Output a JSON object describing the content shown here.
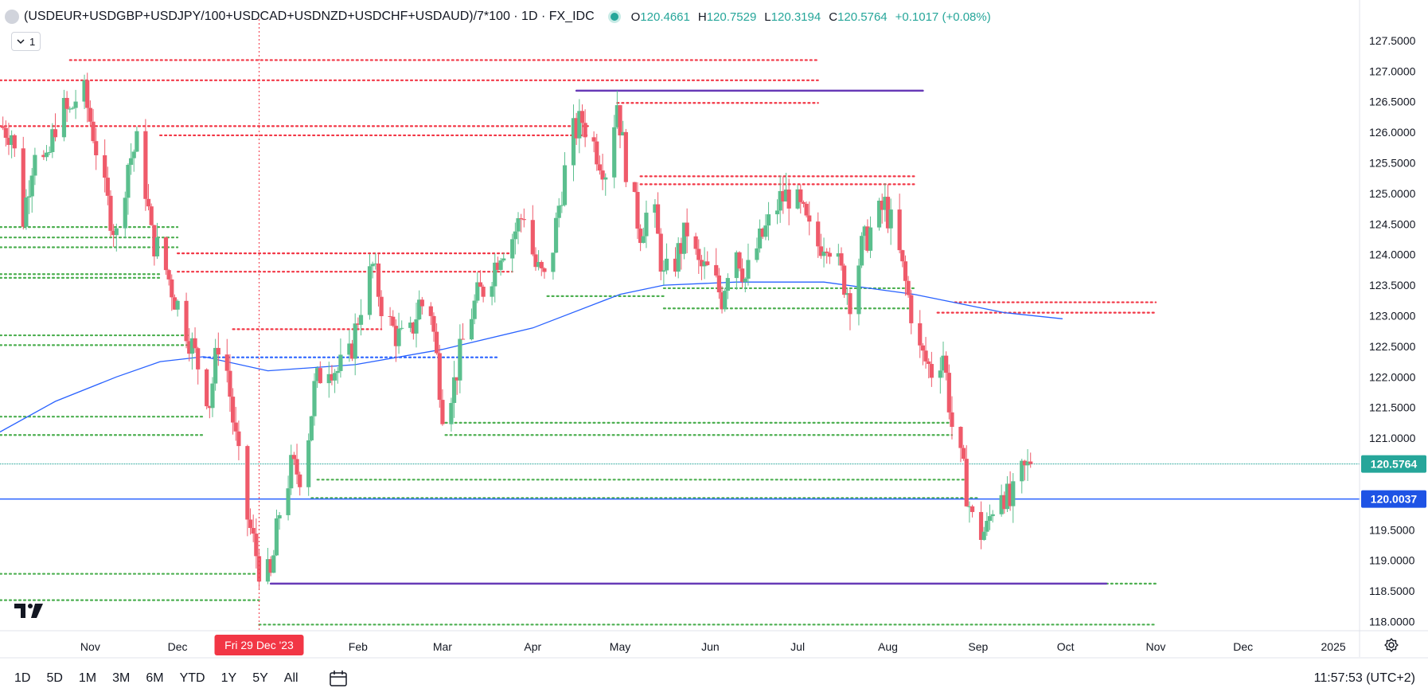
{
  "header": {
    "symbol_title": "(USDEUR+USDGBP+USDJPY/100+USDCAD+USDNZD+USDCHF+USDAUD)/7*100 · 1D · FX_IDC",
    "ohlc": {
      "o_label": "O",
      "o": "120.4661",
      "h_label": "H",
      "h": "120.7529",
      "l_label": "L",
      "l": "120.3194",
      "c_label": "C",
      "c": "120.5764",
      "change": "+0.1017 (+0.08%)"
    },
    "indicator_count": "1"
  },
  "time_axis": {
    "labels": [
      "Nov",
      "Dec",
      "Feb",
      "Mar",
      "Apr",
      "May",
      "Jun",
      "Jul",
      "Aug",
      "Sep",
      "Oct",
      "Nov",
      "Dec",
      "2025"
    ],
    "crosshair_label": "Fri 29 Dec '23"
  },
  "price_axis": {
    "labels": [
      "127.5000",
      "127.0000",
      "126.5000",
      "126.0000",
      "125.5000",
      "125.0000",
      "124.5000",
      "124.0000",
      "123.5000",
      "123.0000",
      "122.5000",
      "122.0000",
      "121.5000",
      "121.0000",
      "120.5000",
      "120.0000",
      "119.5000",
      "119.0000",
      "118.5000",
      "118.0000"
    ],
    "last_price_badge": "120.5764",
    "line_price_badge": "120.0037"
  },
  "bottom_bar": {
    "ranges": [
      "1D",
      "5D",
      "1M",
      "3M",
      "6M",
      "YTD",
      "1Y",
      "5Y",
      "All"
    ],
    "clock": "11:57:53 (UTC+2)"
  },
  "colors": {
    "up": "#26a69a",
    "down": "#ef5350",
    "candle_up": "#5bbf8e",
    "candle_down": "#ef5a6a",
    "ma": "#2962ff",
    "purple": "#673ab7",
    "last_badge": "#26a69a",
    "line_badge": "#1e53e5",
    "crosshair_badge": "#f23645"
  },
  "chart_data": {
    "type": "candlestick",
    "title": "(USDEUR+USDGBP+USDJPY/100+USDCAD+USDNZD+USDCHF+USDAUD)/7*100 · 1D · FX_IDC",
    "ylim": [
      117.85,
      127.85
    ],
    "y_ticks": [
      118.0,
      118.5,
      119.0,
      119.5,
      120.0,
      120.5,
      121.0,
      121.5,
      122.0,
      122.5,
      123.0,
      123.5,
      124.0,
      124.5,
      125.0,
      125.5,
      126.0,
      126.5,
      127.0,
      127.5
    ],
    "x_range": [
      "2023-10-01",
      "2025-01-10"
    ],
    "x_ticks": [
      {
        "date": "2023-11-01",
        "label": "Nov"
      },
      {
        "date": "2023-12-01",
        "label": "Dec"
      },
      {
        "date": "2024-02-01",
        "label": "Feb"
      },
      {
        "date": "2024-03-01",
        "label": "Mar"
      },
      {
        "date": "2024-04-01",
        "label": "Apr"
      },
      {
        "date": "2024-05-01",
        "label": "May"
      },
      {
        "date": "2024-06-01",
        "label": "Jun"
      },
      {
        "date": "2024-07-01",
        "label": "Jul"
      },
      {
        "date": "2024-08-01",
        "label": "Aug"
      },
      {
        "date": "2024-09-01",
        "label": "Sep"
      },
      {
        "date": "2024-10-01",
        "label": "Oct"
      },
      {
        "date": "2024-11-01",
        "label": "Nov"
      },
      {
        "date": "2024-12-01",
        "label": "Dec"
      },
      {
        "date": "2025-01-01",
        "label": "2025"
      }
    ],
    "crosshair_date": "2023-12-29",
    "close_path": [
      [
        "2023-10-01",
        126.1
      ],
      [
        "2023-10-05",
        126.0
      ],
      [
        "2023-10-09",
        124.6
      ],
      [
        "2023-10-13",
        125.8
      ],
      [
        "2023-10-17",
        125.4
      ],
      [
        "2023-10-21",
        126.4
      ],
      [
        "2023-10-25",
        126.3
      ],
      [
        "2023-10-29",
        126.8
      ],
      [
        "2023-11-02",
        126.0
      ],
      [
        "2023-11-06",
        125.0
      ],
      [
        "2023-11-10",
        124.3
      ],
      [
        "2023-11-14",
        125.5
      ],
      [
        "2023-11-18",
        125.9
      ],
      [
        "2023-11-22",
        124.3
      ],
      [
        "2023-11-26",
        123.9
      ],
      [
        "2023-11-30",
        123.3
      ],
      [
        "2023-12-04",
        122.8
      ],
      [
        "2023-12-08",
        122.2
      ],
      [
        "2023-12-12",
        121.6
      ],
      [
        "2023-12-16",
        122.9
      ],
      [
        "2023-12-20",
        121.3
      ],
      [
        "2023-12-24",
        119.9
      ],
      [
        "2023-12-29",
        118.9
      ],
      [
        "2024-01-02",
        118.7
      ],
      [
        "2024-01-05",
        119.8
      ],
      [
        "2024-01-09",
        120.5
      ],
      [
        "2024-01-13",
        120.4
      ],
      [
        "2024-01-17",
        121.8
      ],
      [
        "2024-01-21",
        122.3
      ],
      [
        "2024-01-25",
        122.1
      ],
      [
        "2024-01-29",
        122.3
      ],
      [
        "2024-02-02",
        123.2
      ],
      [
        "2024-02-06",
        123.8
      ],
      [
        "2024-02-10",
        123.0
      ],
      [
        "2024-02-14",
        122.7
      ],
      [
        "2024-02-18",
        122.5
      ],
      [
        "2024-02-22",
        123.2
      ],
      [
        "2024-02-26",
        123.1
      ],
      [
        "2024-03-01",
        121.5
      ],
      [
        "2024-03-05",
        121.9
      ],
      [
        "2024-03-09",
        122.8
      ],
      [
        "2024-03-13",
        123.3
      ],
      [
        "2024-03-17",
        123.6
      ],
      [
        "2024-03-21",
        124.1
      ],
      [
        "2024-03-25",
        124.3
      ],
      [
        "2024-03-29",
        124.7
      ],
      [
        "2024-04-02",
        123.8
      ],
      [
        "2024-04-06",
        123.5
      ],
      [
        "2024-04-10",
        124.8
      ],
      [
        "2024-04-14",
        125.9
      ],
      [
        "2024-04-18",
        126.2
      ],
      [
        "2024-04-22",
        125.8
      ],
      [
        "2024-04-26",
        125.4
      ],
      [
        "2024-04-30",
        126.5
      ],
      [
        "2024-05-04",
        125.1
      ],
      [
        "2024-05-08",
        124.4
      ],
      [
        "2024-05-12",
        124.9
      ],
      [
        "2024-05-16",
        123.6
      ],
      [
        "2024-05-20",
        123.9
      ],
      [
        "2024-05-24",
        124.4
      ],
      [
        "2024-05-28",
        123.8
      ],
      [
        "2024-06-01",
        123.7
      ],
      [
        "2024-06-05",
        123.3
      ],
      [
        "2024-06-09",
        124.3
      ],
      [
        "2024-06-13",
        123.6
      ],
      [
        "2024-06-17",
        124.1
      ],
      [
        "2024-06-21",
        124.5
      ],
      [
        "2024-06-25",
        124.9
      ],
      [
        "2024-06-29",
        125.0
      ],
      [
        "2024-07-03",
        124.6
      ],
      [
        "2024-07-07",
        124.1
      ],
      [
        "2024-07-11",
        124.3
      ],
      [
        "2024-07-15",
        123.8
      ],
      [
        "2024-07-19",
        123.3
      ],
      [
        "2024-07-23",
        124.1
      ],
      [
        "2024-07-27",
        124.5
      ],
      [
        "2024-07-31",
        124.8
      ],
      [
        "2024-08-04",
        124.2
      ],
      [
        "2024-08-08",
        123.3
      ],
      [
        "2024-08-12",
        122.4
      ],
      [
        "2024-08-16",
        122.1
      ],
      [
        "2024-08-20",
        122.4
      ],
      [
        "2024-08-23",
        121.2
      ],
      [
        "2024-08-27",
        120.4
      ],
      [
        "2024-08-31",
        119.4
      ],
      [
        "2024-09-04",
        119.5
      ],
      [
        "2024-09-08",
        120.3
      ],
      [
        "2024-09-12",
        119.9
      ],
      [
        "2024-09-16",
        120.4
      ],
      [
        "2024-09-19",
        120.5764
      ]
    ],
    "ma_line": [
      [
        "2023-10-01",
        121.1
      ],
      [
        "2023-10-20",
        121.6
      ],
      [
        "2023-11-10",
        122.0
      ],
      [
        "2023-11-25",
        122.25
      ],
      [
        "2023-12-10",
        122.33
      ],
      [
        "2024-01-01",
        122.1
      ],
      [
        "2024-01-31",
        122.2
      ],
      [
        "2024-03-01",
        122.45
      ],
      [
        "2024-04-01",
        122.8
      ],
      [
        "2024-05-01",
        123.35
      ],
      [
        "2024-05-16",
        123.5
      ],
      [
        "2024-06-10",
        123.55
      ],
      [
        "2024-07-10",
        123.55
      ],
      [
        "2024-08-10",
        123.35
      ],
      [
        "2024-09-10",
        123.05
      ],
      [
        "2024-09-30",
        122.95
      ]
    ],
    "level_lines": [
      {
        "y": 127.18,
        "x1": "2023-10-25",
        "x2": "2024-07-08",
        "color": "red",
        "style": "dotted"
      },
      {
        "y": 126.85,
        "x1": "2023-10-01",
        "x2": "2024-07-08",
        "color": "red",
        "style": "dotted"
      },
      {
        "y": 126.48,
        "x1": "2024-04-30",
        "x2": "2024-07-08",
        "color": "red",
        "style": "dotted"
      },
      {
        "y": 126.1,
        "x1": "2023-10-01",
        "x2": "2024-04-20",
        "color": "red",
        "style": "dotted"
      },
      {
        "y": 125.95,
        "x1": "2023-11-25",
        "x2": "2024-04-20",
        "color": "red",
        "style": "dotted"
      },
      {
        "y": 125.28,
        "x1": "2024-05-08",
        "x2": "2024-08-10",
        "color": "red",
        "style": "dotted"
      },
      {
        "y": 125.15,
        "x1": "2024-05-08",
        "x2": "2024-08-10",
        "color": "red",
        "style": "dotted"
      },
      {
        "y": 124.02,
        "x1": "2023-12-01",
        "x2": "2024-03-25",
        "color": "red",
        "style": "dotted"
      },
      {
        "y": 123.72,
        "x1": "2023-12-01",
        "x2": "2024-03-25",
        "color": "red",
        "style": "dotted"
      },
      {
        "y": 123.22,
        "x1": "2024-08-24",
        "x2": "2024-11-01",
        "color": "red",
        "style": "dotted"
      },
      {
        "y": 123.05,
        "x1": "2024-08-18",
        "x2": "2024-11-01",
        "color": "red",
        "style": "dotted"
      },
      {
        "y": 122.78,
        "x1": "2023-12-20",
        "x2": "2024-02-09",
        "color": "red",
        "style": "dotted"
      },
      {
        "y": 122.32,
        "x1": "2023-12-10",
        "x2": "2024-03-20",
        "color": "blue",
        "style": "dotted"
      },
      {
        "y": 124.45,
        "x1": "2023-10-01",
        "x2": "2023-12-01",
        "color": "green",
        "style": "dotted"
      },
      {
        "y": 124.28,
        "x1": "2023-10-01",
        "x2": "2023-12-01",
        "color": "green",
        "style": "dotted"
      },
      {
        "y": 124.12,
        "x1": "2023-10-01",
        "x2": "2023-12-01",
        "color": "green",
        "style": "dotted"
      },
      {
        "y": 123.68,
        "x1": "2023-10-01",
        "x2": "2023-11-25",
        "color": "green",
        "style": "dotted"
      },
      {
        "y": 123.62,
        "x1": "2023-10-01",
        "x2": "2023-11-25",
        "color": "green",
        "style": "dotted"
      },
      {
        "y": 122.68,
        "x1": "2023-10-01",
        "x2": "2023-12-05",
        "color": "green",
        "style": "dotted"
      },
      {
        "y": 122.52,
        "x1": "2023-10-01",
        "x2": "2023-12-05",
        "color": "green",
        "style": "dotted"
      },
      {
        "y": 121.35,
        "x1": "2023-10-01",
        "x2": "2023-12-10",
        "color": "green",
        "style": "dotted"
      },
      {
        "y": 121.05,
        "x1": "2023-10-01",
        "x2": "2023-12-10",
        "color": "green",
        "style": "dotted"
      },
      {
        "y": 123.45,
        "x1": "2024-05-16",
        "x2": "2024-08-10",
        "color": "green",
        "style": "dotted"
      },
      {
        "y": 123.32,
        "x1": "2024-04-06",
        "x2": "2024-05-16",
        "color": "green",
        "style": "dotted"
      },
      {
        "y": 123.12,
        "x1": "2024-05-16",
        "x2": "2024-08-08",
        "color": "green",
        "style": "dotted"
      },
      {
        "y": 121.25,
        "x1": "2024-03-02",
        "x2": "2024-08-23",
        "color": "green",
        "style": "dotted"
      },
      {
        "y": 121.05,
        "x1": "2024-03-02",
        "x2": "2024-08-23",
        "color": "green",
        "style": "dotted"
      },
      {
        "y": 120.32,
        "x1": "2024-01-18",
        "x2": "2024-08-27",
        "color": "green",
        "style": "dotted"
      },
      {
        "y": 120.02,
        "x1": "2024-01-16",
        "x2": "2024-09-01",
        "color": "green",
        "style": "dotted"
      },
      {
        "y": 118.78,
        "x1": "2023-10-01",
        "x2": "2023-12-29",
        "color": "green",
        "style": "dotted"
      },
      {
        "y": 118.35,
        "x1": "2023-10-01",
        "x2": "2023-12-29",
        "color": "green",
        "style": "dotted"
      },
      {
        "y": 118.62,
        "x1": "2024-10-15",
        "x2": "2024-11-01",
        "color": "green",
        "style": "dotted"
      },
      {
        "y": 117.95,
        "x1": "2023-12-29",
        "x2": "2024-11-01",
        "color": "green",
        "style": "dotted"
      },
      {
        "y": 126.68,
        "x1": "2024-04-16",
        "x2": "2024-08-13",
        "color": "purple",
        "style": "solid"
      },
      {
        "y": 118.62,
        "x1": "2024-01-02",
        "x2": "2024-10-15",
        "color": "purple",
        "style": "solid"
      },
      {
        "y": 120.0037,
        "x1": "2023-10-01",
        "x2": "2025-01-10",
        "color": "blue",
        "style": "solid"
      },
      {
        "y": 120.5764,
        "x1": "2023-10-01",
        "x2": "2025-01-10",
        "color": "teal",
        "style": "dotted"
      }
    ]
  }
}
